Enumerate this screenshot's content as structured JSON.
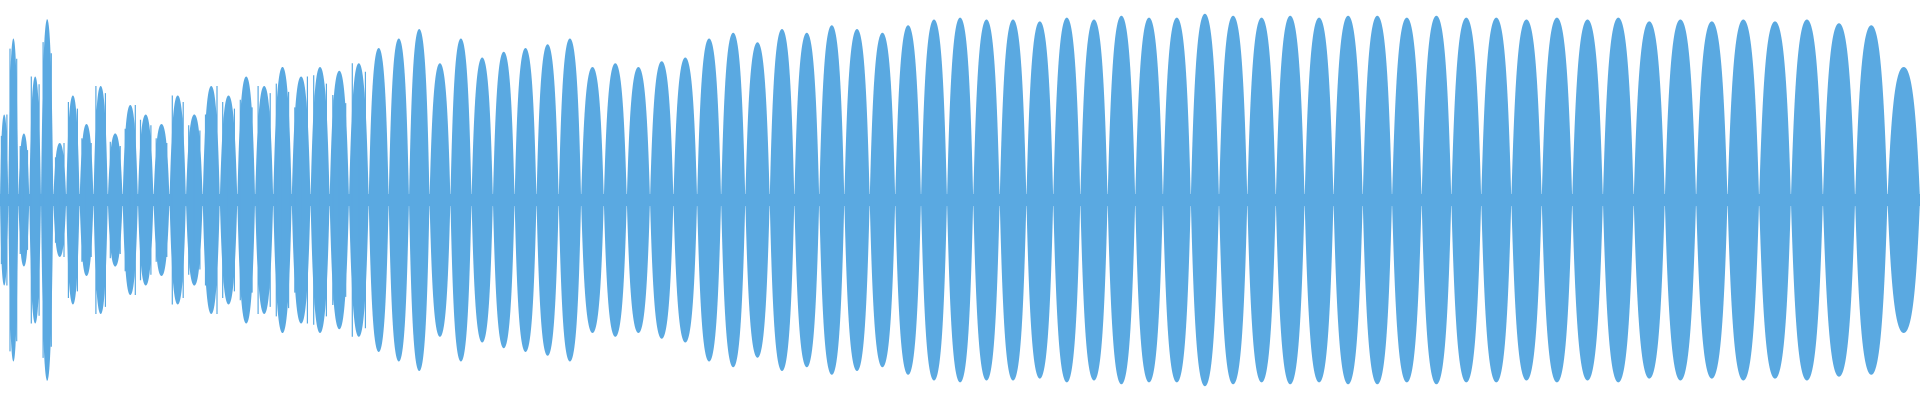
{
  "waveform": {
    "color": "#5AA9E1",
    "background": "#FFFFFF",
    "peaks": [
      0.45,
      0.85,
      0.35,
      0.65,
      0.95,
      0.3,
      0.55,
      0.4,
      0.6,
      0.35,
      0.5,
      0.45,
      0.4,
      0.55,
      0.45,
      0.6,
      0.55,
      0.65,
      0.6,
      0.7,
      0.65,
      0.7,
      0.68,
      0.72,
      0.8,
      0.85,
      0.9,
      0.72,
      0.85,
      0.75,
      0.78,
      0.8,
      0.82,
      0.85,
      0.7,
      0.72,
      0.7,
      0.73,
      0.75,
      0.85,
      0.88,
      0.83,
      0.9,
      0.88,
      0.92,
      0.9,
      0.88,
      0.92,
      0.95,
      0.96,
      0.95,
      0.95,
      0.94,
      0.96,
      0.95,
      0.97,
      0.96,
      0.96,
      0.98,
      0.97,
      0.96,
      0.97,
      0.96,
      0.97,
      0.97,
      0.96,
      0.97,
      0.96,
      0.96,
      0.95,
      0.96,
      0.95,
      0.96,
      0.94,
      0.95,
      0.94,
      0.95,
      0.94,
      0.95,
      0.93,
      0.92,
      0.7
    ]
  }
}
